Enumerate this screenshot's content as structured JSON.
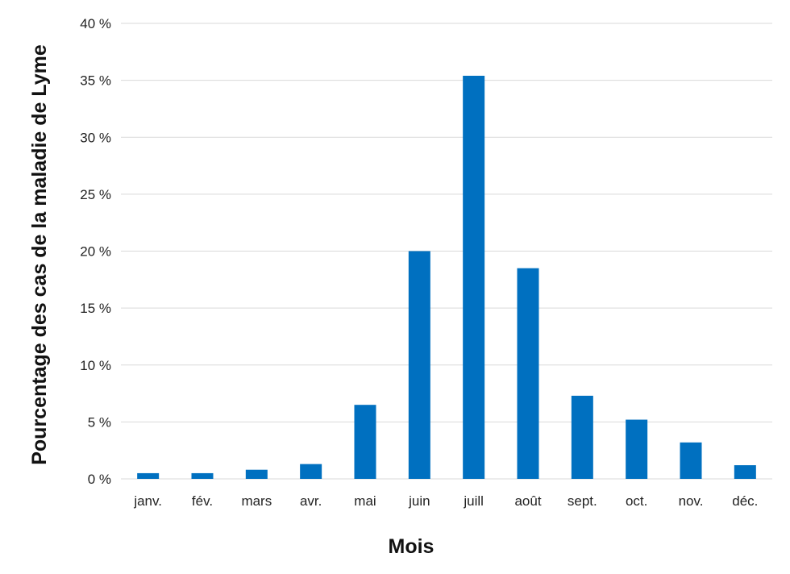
{
  "chart_data": {
    "type": "bar",
    "title": "",
    "xlabel": "Mois",
    "ylabel": "Pourcentage des  cas de la maladie de Lyme",
    "categories": [
      "janv.",
      "fév.",
      "mars",
      "avr.",
      "mai",
      "juin",
      "juill",
      "août",
      "sept.",
      "oct.",
      "nov.",
      "déc."
    ],
    "series": [
      {
        "values": [
          0.5,
          0.5,
          0.8,
          1.3,
          6.5,
          20.0,
          35.4,
          18.5,
          7.3,
          5.2,
          3.2,
          1.2
        ]
      }
    ],
    "ylim": [
      0,
      40
    ],
    "yticks": [
      0,
      5,
      10,
      15,
      20,
      25,
      30,
      35,
      40
    ],
    "ytick_labels": [
      "0 %",
      "5 %",
      "10 %",
      "15 %",
      "20 %",
      "25 %",
      "30 %",
      "35 %",
      "40 %"
    ],
    "grid": true,
    "legend": "none",
    "bar_color": "#0070c0",
    "grid_color": "#d9d9d9"
  }
}
